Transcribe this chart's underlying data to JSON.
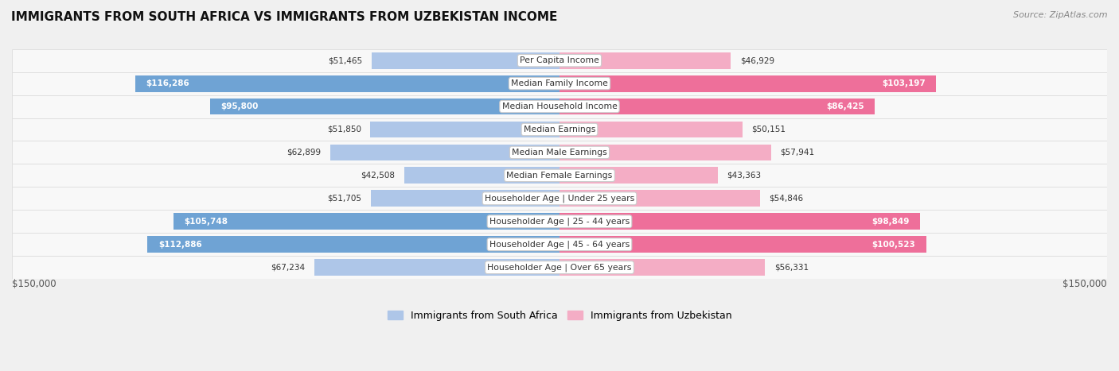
{
  "title": "IMMIGRANTS FROM SOUTH AFRICA VS IMMIGRANTS FROM UZBEKISTAN INCOME",
  "source": "Source: ZipAtlas.com",
  "categories": [
    "Per Capita Income",
    "Median Family Income",
    "Median Household Income",
    "Median Earnings",
    "Median Male Earnings",
    "Median Female Earnings",
    "Householder Age | Under 25 years",
    "Householder Age | 25 - 44 years",
    "Householder Age | 45 - 64 years",
    "Householder Age | Over 65 years"
  ],
  "south_africa_values": [
    51465,
    116286,
    95800,
    51850,
    62899,
    42508,
    51705,
    105748,
    112886,
    67234
  ],
  "uzbekistan_values": [
    46929,
    103197,
    86425,
    50151,
    57941,
    43363,
    54846,
    98849,
    100523,
    56331
  ],
  "sa_color_light": "#aec6e8",
  "sa_color_dark": "#6fa3d4",
  "uz_color_light": "#f4adc5",
  "uz_color_dark": "#ee6f9a",
  "bar_height": 0.72,
  "max_value": 150000,
  "bg_color": "#f0f0f0",
  "row_color": "#f8f8f8",
  "row_border": "#dddddd",
  "label_dark": "#333333",
  "label_white": "#ffffff",
  "large_threshold": 80000,
  "legend_sa": "Immigrants from South Africa",
  "legend_uz": "Immigrants from Uzbekistan"
}
